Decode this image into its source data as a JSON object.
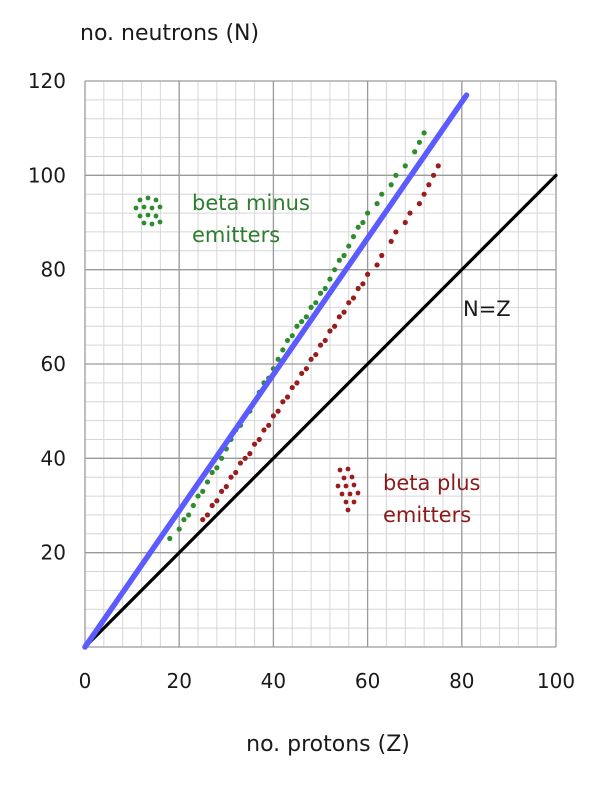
{
  "chart_data": {
    "type": "scatter",
    "title": "",
    "xlabel": "no. protons (Z)",
    "ylabel": "no. neutrons (N)",
    "xlim": [
      0,
      100
    ],
    "ylim": [
      0,
      120
    ],
    "x_ticks": [
      0,
      20,
      40,
      60,
      80,
      100
    ],
    "y_ticks": [
      20,
      40,
      60,
      80,
      100,
      120
    ],
    "grid": true,
    "colors": {
      "beta_minus": "#2e8b2e",
      "beta_plus": "#9b1c1c",
      "stability_line": "#5b5bff",
      "nz_line": "#000000",
      "grid_major": "#9a9a9a",
      "grid_minor": "#d6d6d6"
    },
    "lines": [
      {
        "label": "",
        "points": [
          [
            0,
            0
          ],
          [
            81,
            117
          ]
        ]
      },
      {
        "label": "N=Z",
        "points": [
          [
            0,
            0
          ],
          [
            100,
            100
          ]
        ]
      }
    ],
    "series": [
      {
        "name": "beta minus emitters",
        "points": [
          [
            18,
            23
          ],
          [
            20,
            25
          ],
          [
            21,
            27
          ],
          [
            22,
            28
          ],
          [
            23,
            30
          ],
          [
            24,
            32
          ],
          [
            25,
            33
          ],
          [
            26,
            35
          ],
          [
            27,
            37
          ],
          [
            28,
            38
          ],
          [
            29,
            40
          ],
          [
            30,
            42
          ],
          [
            31,
            44
          ],
          [
            32,
            46
          ],
          [
            33,
            47
          ],
          [
            34,
            49
          ],
          [
            35,
            50
          ],
          [
            36,
            52
          ],
          [
            37,
            54
          ],
          [
            38,
            56
          ],
          [
            39,
            57
          ],
          [
            40,
            59
          ],
          [
            41,
            61
          ],
          [
            42,
            63
          ],
          [
            43,
            65
          ],
          [
            44,
            66
          ],
          [
            45,
            68
          ],
          [
            46,
            69
          ],
          [
            47,
            70
          ],
          [
            48,
            72
          ],
          [
            49,
            73
          ],
          [
            50,
            75
          ],
          [
            51,
            76
          ],
          [
            52,
            78
          ],
          [
            53,
            80
          ],
          [
            54,
            82
          ],
          [
            55,
            83
          ],
          [
            56,
            85
          ],
          [
            57,
            87
          ],
          [
            58,
            89
          ],
          [
            59,
            90
          ],
          [
            60,
            92
          ],
          [
            62,
            94
          ],
          [
            63,
            96
          ],
          [
            65,
            98
          ],
          [
            66,
            100
          ],
          [
            68,
            102
          ],
          [
            70,
            105
          ],
          [
            71,
            107
          ],
          [
            72,
            109
          ]
        ]
      },
      {
        "name": "beta plus emitters",
        "points": [
          [
            25,
            27
          ],
          [
            26,
            28
          ],
          [
            27,
            30
          ],
          [
            28,
            31
          ],
          [
            29,
            33
          ],
          [
            30,
            34
          ],
          [
            31,
            36
          ],
          [
            32,
            37
          ],
          [
            33,
            39
          ],
          [
            34,
            40
          ],
          [
            35,
            41
          ],
          [
            36,
            43
          ],
          [
            37,
            44
          ],
          [
            38,
            46
          ],
          [
            39,
            47
          ],
          [
            40,
            49
          ],
          [
            41,
            50
          ],
          [
            42,
            52
          ],
          [
            43,
            53
          ],
          [
            44,
            55
          ],
          [
            45,
            56
          ],
          [
            46,
            58
          ],
          [
            47,
            59
          ],
          [
            48,
            61
          ],
          [
            49,
            62
          ],
          [
            50,
            64
          ],
          [
            51,
            65
          ],
          [
            52,
            67
          ],
          [
            53,
            68
          ],
          [
            54,
            70
          ],
          [
            55,
            71
          ],
          [
            56,
            73
          ],
          [
            57,
            74
          ],
          [
            58,
            76
          ],
          [
            59,
            77
          ],
          [
            60,
            79
          ],
          [
            62,
            81
          ],
          [
            63,
            83
          ],
          [
            65,
            86
          ],
          [
            66,
            88
          ],
          [
            68,
            90
          ],
          [
            69,
            92
          ],
          [
            71,
            94
          ],
          [
            72,
            96
          ],
          [
            73,
            98
          ],
          [
            74,
            100
          ],
          [
            75,
            102
          ]
        ]
      }
    ],
    "annotations": {
      "beta_minus_line1": "beta minus",
      "beta_minus_line2": "emitters",
      "beta_plus_line1": "beta plus",
      "beta_plus_line2": "emitters",
      "nz_label": "N=Z"
    }
  }
}
